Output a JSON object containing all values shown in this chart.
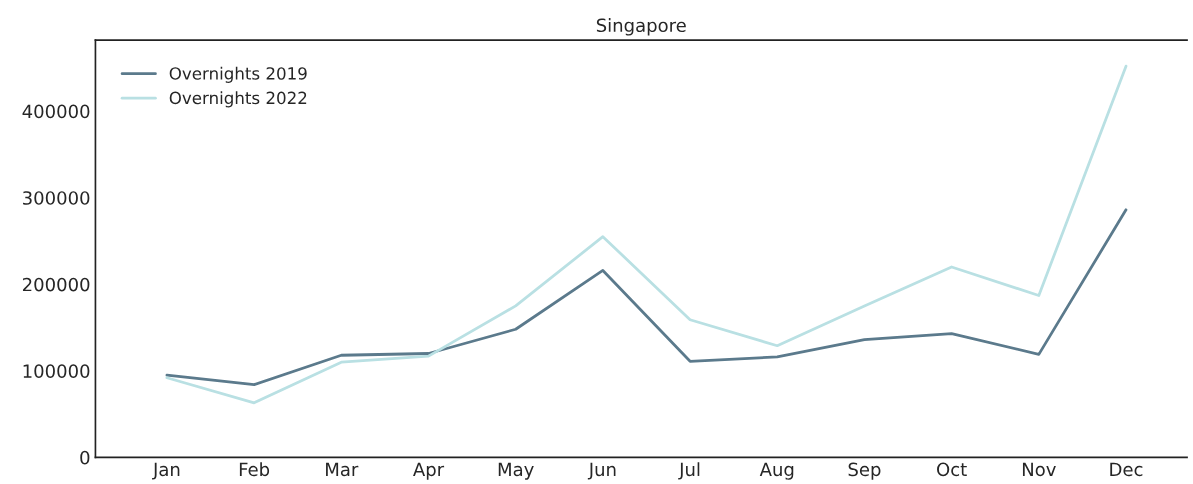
{
  "chart_data": {
    "type": "line",
    "title": "Singapore",
    "categories": [
      "Jan",
      "Feb",
      "Mar",
      "Apr",
      "May",
      "Jun",
      "Jul",
      "Aug",
      "Sep",
      "Oct",
      "Nov",
      "Dec"
    ],
    "series": [
      {
        "name": "Overnights 2019",
        "color": "#5b7a8c",
        "values": [
          95000,
          84000,
          118000,
          120000,
          148000,
          216000,
          111000,
          116000,
          136000,
          143000,
          119000,
          286000
        ]
      },
      {
        "name": "Overnights 2022",
        "color": "#b9e0e3",
        "values": [
          92000,
          63000,
          110000,
          117000,
          175000,
          255000,
          159000,
          129000,
          175000,
          220000,
          187000,
          452000
        ]
      }
    ],
    "ylim": [
      0,
      482000
    ],
    "yticks": [
      0,
      100000,
      200000,
      300000,
      400000
    ],
    "grid": false,
    "legend": "top left",
    "marker": "none",
    "line_style": "solid"
  }
}
